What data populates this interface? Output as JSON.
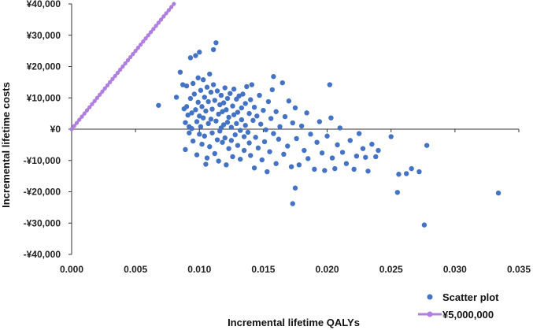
{
  "chart_data": {
    "type": "scatter",
    "title": "",
    "xlabel": "Incremental  lifetime QALYs",
    "ylabel": "Incremental lifetime costs",
    "xlim": [
      0,
      0.035
    ],
    "ylim": [
      -40000,
      40000
    ],
    "x_ticks": [
      0,
      0.005,
      0.01,
      0.015,
      0.02,
      0.025,
      0.03,
      0.035
    ],
    "x_tick_labels": [
      "0.000",
      "0.005",
      "0.010",
      "0.015",
      "0.020",
      "0.025",
      "0.030",
      "0.035"
    ],
    "y_ticks": [
      40000,
      30000,
      20000,
      10000,
      0,
      -10000,
      -20000,
      -30000,
      -40000
    ],
    "y_tick_labels": [
      "¥40,000",
      "¥30,000",
      "¥20,000",
      "¥10,000",
      "¥0",
      "-¥10,000",
      "-¥20,000",
      "-¥30,000",
      "-¥40,000"
    ],
    "grid": false,
    "legend_position": "bottom-right",
    "colors": {
      "scatter": "#4472c4",
      "threshold": "#b07fe0",
      "axis": "#333333"
    },
    "series": [
      {
        "name": "Scatter plot",
        "kind": "points",
        "points": [
          [
            0.0068,
            7600
          ],
          [
            0.0082,
            10200
          ],
          [
            0.0085,
            18200
          ],
          [
            0.0087,
            14200
          ],
          [
            0.0088,
            6500
          ],
          [
            0.0089,
            2100
          ],
          [
            0.0089,
            -6500
          ],
          [
            0.009,
            13800
          ],
          [
            0.009,
            7200
          ],
          [
            0.0091,
            4500
          ],
          [
            0.0092,
            800
          ],
          [
            0.0092,
            -1200
          ],
          [
            0.0093,
            22800
          ],
          [
            0.0093,
            9800
          ],
          [
            0.0094,
            5200
          ],
          [
            0.0094,
            200
          ],
          [
            0.0095,
            14600
          ],
          [
            0.0095,
            -3800
          ],
          [
            0.0096,
            11200
          ],
          [
            0.0097,
            23500
          ],
          [
            0.0097,
            6200
          ],
          [
            0.0098,
            2400
          ],
          [
            0.0098,
            -8200
          ],
          [
            0.0099,
            16400
          ],
          [
            0.0099,
            8600
          ],
          [
            0.01,
            24600
          ],
          [
            0.01,
            4200
          ],
          [
            0.01,
            -1600
          ],
          [
            0.0101,
            12400
          ],
          [
            0.0101,
            800
          ],
          [
            0.0102,
            7200
          ],
          [
            0.0102,
            -4800
          ],
          [
            0.0103,
            15800
          ],
          [
            0.0103,
            3600
          ],
          [
            0.0104,
            10200
          ],
          [
            0.0104,
            -2200
          ],
          [
            0.0105,
            -11200
          ],
          [
            0.0105,
            5800
          ],
          [
            0.0106,
            13400
          ],
          [
            0.0106,
            -9200
          ],
          [
            0.0107,
            1800
          ],
          [
            0.0107,
            8800
          ],
          [
            0.0108,
            17600
          ],
          [
            0.0108,
            -5600
          ],
          [
            0.0109,
            11800
          ],
          [
            0.0109,
            3200
          ],
          [
            0.011,
            6400
          ],
          [
            0.011,
            -1200
          ],
          [
            0.0111,
            25400
          ],
          [
            0.0111,
            14200
          ],
          [
            0.0112,
            9200
          ],
          [
            0.0112,
            -7800
          ],
          [
            0.0113,
            27600
          ],
          [
            0.0113,
            2600
          ],
          [
            0.0114,
            12200
          ],
          [
            0.0114,
            -3400
          ],
          [
            0.0115,
            4800
          ],
          [
            0.0115,
            -10200
          ],
          [
            0.0116,
            7800
          ],
          [
            0.0116,
            -600
          ],
          [
            0.0117,
            10800
          ],
          [
            0.0117,
            400
          ],
          [
            0.0118,
            5600
          ],
          [
            0.0118,
            -4200
          ],
          [
            0.0119,
            8400
          ],
          [
            0.0119,
            1400
          ],
          [
            0.012,
            13200
          ],
          [
            0.012,
            -2800
          ],
          [
            0.0121,
            6200
          ],
          [
            0.0121,
            -11400
          ],
          [
            0.0122,
            9800
          ],
          [
            0.0122,
            2200
          ],
          [
            0.0123,
            3800
          ],
          [
            0.0123,
            -6200
          ],
          [
            0.0124,
            11400
          ],
          [
            0.0125,
            600
          ],
          [
            0.0125,
            -3600
          ],
          [
            0.0126,
            7400
          ],
          [
            0.0126,
            -8800
          ],
          [
            0.0127,
            4600
          ],
          [
            0.0127,
            12800
          ],
          [
            0.0128,
            -1800
          ],
          [
            0.0129,
            9600
          ],
          [
            0.0129,
            1800
          ],
          [
            0.013,
            5400
          ],
          [
            0.013,
            -5200
          ],
          [
            0.0131,
            10600
          ],
          [
            0.0132,
            -400
          ],
          [
            0.0132,
            -9600
          ],
          [
            0.0133,
            6800
          ],
          [
            0.0133,
            3000
          ],
          [
            0.0134,
            11200
          ],
          [
            0.0135,
            -2400
          ],
          [
            0.0135,
            -6800
          ],
          [
            0.0136,
            8200
          ],
          [
            0.0136,
            1200
          ],
          [
            0.0137,
            13600
          ],
          [
            0.0138,
            -1000
          ],
          [
            0.0139,
            5000
          ],
          [
            0.0139,
            -4400
          ],
          [
            0.014,
            9400
          ],
          [
            0.014,
            -8400
          ],
          [
            0.0141,
            14200
          ],
          [
            0.0142,
            2800
          ],
          [
            0.0143,
            -12400
          ],
          [
            0.0143,
            7000
          ],
          [
            0.0144,
            -2600
          ],
          [
            0.0145,
            4200
          ],
          [
            0.0146,
            -6000
          ],
          [
            0.0147,
            10800
          ],
          [
            0.0148,
            1600
          ],
          [
            0.0149,
            -9800
          ],
          [
            0.015,
            6000
          ],
          [
            0.0151,
            -4000
          ],
          [
            0.0152,
            -200
          ],
          [
            0.0153,
            -13600
          ],
          [
            0.0154,
            8800
          ],
          [
            0.0155,
            -7200
          ],
          [
            0.0156,
            3400
          ],
          [
            0.0157,
            12600
          ],
          [
            0.0158,
            16800
          ],
          [
            0.0158,
            -1400
          ],
          [
            0.016,
            -11000
          ],
          [
            0.016,
            5600
          ],
          [
            0.0162,
            -3200
          ],
          [
            0.0163,
            800
          ],
          [
            0.0165,
            14800
          ],
          [
            0.0166,
            -8000
          ],
          [
            0.0167,
            4000
          ],
          [
            0.0169,
            -5400
          ],
          [
            0.017,
            9000
          ],
          [
            0.0172,
            -12000
          ],
          [
            0.0173,
            -23800
          ],
          [
            0.0173,
            2000
          ],
          [
            0.0175,
            -18800
          ],
          [
            0.0175,
            6800
          ],
          [
            0.0176,
            -3000
          ],
          [
            0.0178,
            -11400
          ],
          [
            0.018,
            1000
          ],
          [
            0.0182,
            -6800
          ],
          [
            0.0184,
            5200
          ],
          [
            0.0185,
            -9400
          ],
          [
            0.0187,
            -1600
          ],
          [
            0.019,
            -12800
          ],
          [
            0.0192,
            -4200
          ],
          [
            0.0194,
            2400
          ],
          [
            0.0196,
            -7600
          ],
          [
            0.0198,
            -13200
          ],
          [
            0.02,
            -2200
          ],
          [
            0.0202,
            14200
          ],
          [
            0.0203,
            3600
          ],
          [
            0.0204,
            -9200
          ],
          [
            0.0206,
            -12600
          ],
          [
            0.0208,
            -5000
          ],
          [
            0.021,
            400
          ],
          [
            0.0212,
            -7400
          ],
          [
            0.0215,
            -11000
          ],
          [
            0.0218,
            -3600
          ],
          [
            0.0221,
            -12800
          ],
          [
            0.0223,
            -8600
          ],
          [
            0.0225,
            -1400
          ],
          [
            0.0228,
            -6200
          ],
          [
            0.023,
            -9000
          ],
          [
            0.0232,
            -13400
          ],
          [
            0.0235,
            -4800
          ],
          [
            0.0238,
            -8800
          ],
          [
            0.024,
            -6800
          ],
          [
            0.025,
            -2400
          ],
          [
            0.0255,
            -20200
          ],
          [
            0.0256,
            -14400
          ],
          [
            0.0262,
            -14200
          ],
          [
            0.0266,
            -12600
          ],
          [
            0.0272,
            -13600
          ],
          [
            0.0276,
            -30600
          ],
          [
            0.0278,
            -5200
          ],
          [
            0.0334,
            -20400
          ]
        ]
      },
      {
        "name": "¥5,000,000",
        "kind": "threshold-line",
        "x": [
          0,
          0.008
        ],
        "y": [
          0,
          40000
        ]
      }
    ]
  }
}
